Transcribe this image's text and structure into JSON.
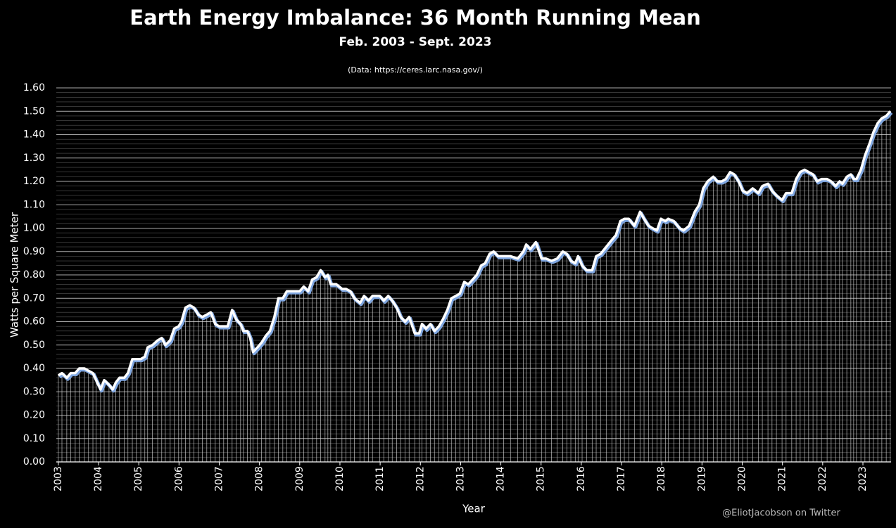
{
  "chart_data": {
    "type": "line",
    "title": "Earth Energy Imbalance: 36 Month Running Mean",
    "subtitle": "Feb. 2003 - Sept. 2023",
    "annotation": "(Data: https://ceres.larc.nasa.gov/)",
    "credit": "@EliotJacobson on Twitter",
    "x_label": "Year",
    "y_label": "Watts per Square Meter",
    "color": "#ffffff",
    "grid": true,
    "xlim": [
      2002.95,
      2023.7
    ],
    "xticks": [
      2003,
      2004,
      2005,
      2006,
      2007,
      2008,
      2009,
      2010,
      2011,
      2012,
      2013,
      2014,
      2015,
      2016,
      2017,
      2018,
      2019,
      2020,
      2021,
      2022,
      2023
    ],
    "ylim": [
      0,
      1.6
    ],
    "yticks": [
      {
        "value": 0,
        "label": "0.00"
      },
      {
        "value": 0.1,
        "label": "0.10"
      },
      {
        "value": 0.2,
        "label": "0.20"
      },
      {
        "value": 0.3,
        "label": "0.30"
      },
      {
        "value": 0.4,
        "label": "0.40"
      },
      {
        "value": 0.5,
        "label": "0.50"
      },
      {
        "value": 0.6,
        "label": "0.60"
      },
      {
        "value": 0.7,
        "label": "0.70"
      },
      {
        "value": 0.8,
        "label": "0.80"
      },
      {
        "value": 0.9,
        "label": "0.90"
      },
      {
        "value": 1.0,
        "label": "1.00"
      },
      {
        "value": 1.1,
        "label": "1.10"
      },
      {
        "value": 1.2,
        "label": "1.20"
      },
      {
        "value": 1.3,
        "label": "1.30"
      },
      {
        "value": 1.4,
        "label": "1.40"
      },
      {
        "value": 1.5,
        "label": "1.50"
      },
      {
        "value": 1.6,
        "label": "1.60"
      }
    ],
    "x": [
      2003.0,
      2003.09,
      2003.21,
      2003.31,
      2003.42,
      2003.52,
      2003.65,
      2003.75,
      2003.86,
      2003.94,
      2004.05,
      2004.14,
      2004.26,
      2004.35,
      2004.43,
      2004.52,
      2004.64,
      2004.73,
      2004.84,
      2004.94,
      2005.05,
      2005.15,
      2005.22,
      2005.34,
      2005.47,
      2005.57,
      2005.66,
      2005.78,
      2005.88,
      2005.99,
      2006.06,
      2006.16,
      2006.27,
      2006.37,
      2006.48,
      2006.58,
      2006.69,
      2006.79,
      2006.9,
      2007.0,
      2007.11,
      2007.21,
      2007.32,
      2007.42,
      2007.53,
      2007.6,
      2007.7,
      2007.77,
      2007.84,
      2007.95,
      2008.05,
      2008.16,
      2008.26,
      2008.37,
      2008.47,
      2008.58,
      2008.68,
      2008.79,
      2008.89,
      2009.0,
      2009.1,
      2009.21,
      2009.31,
      2009.42,
      2009.52,
      2009.63,
      2009.7,
      2009.77,
      2009.91,
      2010.05,
      2010.15,
      2010.26,
      2010.36,
      2010.5,
      2010.6,
      2010.71,
      2010.81,
      2010.99,
      2011.09,
      2011.2,
      2011.3,
      2011.41,
      2011.51,
      2011.62,
      2011.72,
      2011.86,
      2011.97,
      2012.04,
      2012.14,
      2012.25,
      2012.35,
      2012.46,
      2012.56,
      2012.67,
      2012.77,
      2012.88,
      2012.98,
      2013.09,
      2013.19,
      2013.3,
      2013.4,
      2013.51,
      2013.61,
      2013.72,
      2013.82,
      2013.93,
      2014.07,
      2014.24,
      2014.42,
      2014.56,
      2014.63,
      2014.73,
      2014.87,
      2015.01,
      2015.12,
      2015.26,
      2015.4,
      2015.54,
      2015.64,
      2015.74,
      2015.85,
      2015.92,
      2016.02,
      2016.13,
      2016.27,
      2016.37,
      2016.48,
      2016.62,
      2016.76,
      2016.86,
      2016.97,
      2017.07,
      2017.18,
      2017.32,
      2017.46,
      2017.56,
      2017.67,
      2017.77,
      2017.88,
      2017.98,
      2018.09,
      2018.16,
      2018.3,
      2018.44,
      2018.54,
      2018.68,
      2018.82,
      2018.93,
      2019.03,
      2019.14,
      2019.28,
      2019.38,
      2019.49,
      2019.59,
      2019.7,
      2019.8,
      2019.91,
      2020.01,
      2020.12,
      2020.26,
      2020.4,
      2020.5,
      2020.64,
      2020.74,
      2020.85,
      2020.99,
      2021.09,
      2021.23,
      2021.34,
      2021.44,
      2021.55,
      2021.65,
      2021.76,
      2021.86,
      2021.97,
      2022.11,
      2022.21,
      2022.32,
      2022.42,
      2022.49,
      2022.6,
      2022.7,
      2022.77,
      2022.84,
      2022.95,
      2023.05,
      2023.16,
      2023.26,
      2023.37,
      2023.47,
      2023.58,
      2023.68
    ],
    "values": [
      0.37,
      0.38,
      0.36,
      0.38,
      0.38,
      0.4,
      0.4,
      0.39,
      0.38,
      0.35,
      0.31,
      0.35,
      0.33,
      0.31,
      0.34,
      0.36,
      0.36,
      0.38,
      0.44,
      0.44,
      0.44,
      0.45,
      0.49,
      0.5,
      0.52,
      0.53,
      0.5,
      0.52,
      0.57,
      0.58,
      0.6,
      0.66,
      0.67,
      0.66,
      0.63,
      0.62,
      0.63,
      0.64,
      0.59,
      0.58,
      0.58,
      0.58,
      0.65,
      0.61,
      0.59,
      0.56,
      0.56,
      0.53,
      0.47,
      0.49,
      0.51,
      0.54,
      0.56,
      0.62,
      0.7,
      0.7,
      0.73,
      0.73,
      0.73,
      0.73,
      0.75,
      0.73,
      0.78,
      0.79,
      0.82,
      0.79,
      0.8,
      0.76,
      0.76,
      0.74,
      0.74,
      0.73,
      0.7,
      0.68,
      0.71,
      0.69,
      0.71,
      0.71,
      0.69,
      0.71,
      0.69,
      0.66,
      0.62,
      0.6,
      0.62,
      0.55,
      0.55,
      0.59,
      0.57,
      0.59,
      0.56,
      0.58,
      0.61,
      0.65,
      0.7,
      0.71,
      0.72,
      0.77,
      0.76,
      0.78,
      0.8,
      0.84,
      0.85,
      0.89,
      0.9,
      0.88,
      0.88,
      0.88,
      0.87,
      0.9,
      0.93,
      0.91,
      0.94,
      0.87,
      0.87,
      0.86,
      0.87,
      0.9,
      0.89,
      0.86,
      0.85,
      0.88,
      0.84,
      0.82,
      0.82,
      0.88,
      0.89,
      0.92,
      0.95,
      0.97,
      1.03,
      1.04,
      1.04,
      1.01,
      1.07,
      1.04,
      1.01,
      1.0,
      0.99,
      1.04,
      1.03,
      1.04,
      1.03,
      1.0,
      0.99,
      1.01,
      1.07,
      1.1,
      1.17,
      1.2,
      1.22,
      1.2,
      1.2,
      1.21,
      1.24,
      1.23,
      1.2,
      1.16,
      1.15,
      1.17,
      1.15,
      1.18,
      1.19,
      1.16,
      1.14,
      1.12,
      1.15,
      1.15,
      1.21,
      1.24,
      1.25,
      1.24,
      1.23,
      1.2,
      1.21,
      1.21,
      1.2,
      1.18,
      1.2,
      1.19,
      1.22,
      1.23,
      1.21,
      1.21,
      1.25,
      1.31,
      1.36,
      1.41,
      1.45,
      1.47,
      1.48,
      1.5
    ]
  }
}
